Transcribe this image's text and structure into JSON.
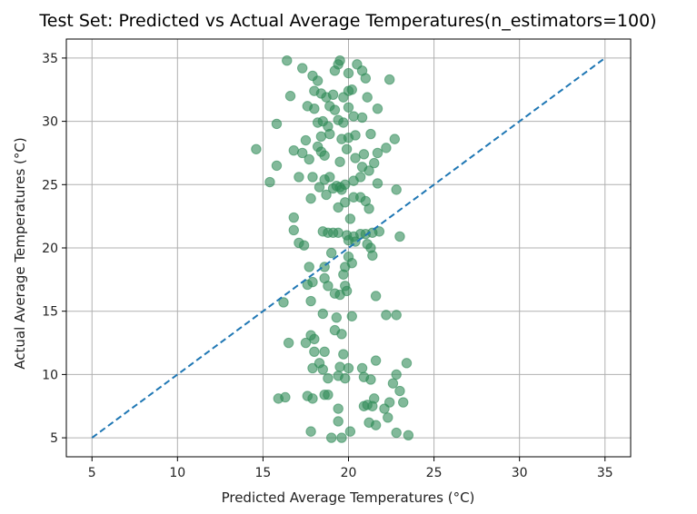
{
  "chart_data": {
    "type": "scatter",
    "title": "Test Set: Predicted vs Actual Average Temperatures(n_estimators=100)",
    "xlabel": "Predicted Average Temperatures (°C)",
    "ylabel": "Actual Average Temperatures (°C)",
    "xlim": [
      3.5,
      36.5
    ],
    "ylim": [
      3.5,
      36.5
    ],
    "xticks": [
      5,
      10,
      15,
      20,
      25,
      30,
      35
    ],
    "yticks": [
      5,
      10,
      15,
      20,
      25,
      30,
      35
    ],
    "grid": true,
    "reference_line": {
      "x": [
        5,
        35
      ],
      "y": [
        5,
        35
      ],
      "style": "dashed",
      "color": "#1f77b4"
    },
    "point_color": "#2e8b57",
    "points": [
      [
        16.4,
        34.8
      ],
      [
        17.3,
        34.2
      ],
      [
        17.9,
        33.6
      ],
      [
        18.2,
        33.2
      ],
      [
        19.2,
        34.0
      ],
      [
        19.5,
        34.8
      ],
      [
        19.4,
        34.5
      ],
      [
        20.0,
        33.8
      ],
      [
        20.5,
        34.5
      ],
      [
        20.8,
        34.0
      ],
      [
        21.0,
        33.4
      ],
      [
        22.4,
        33.3
      ],
      [
        16.6,
        32.0
      ],
      [
        18.0,
        32.4
      ],
      [
        18.4,
        32.2
      ],
      [
        18.7,
        31.9
      ],
      [
        19.1,
        32.1
      ],
      [
        19.7,
        31.9
      ],
      [
        20.0,
        32.4
      ],
      [
        20.2,
        32.5
      ],
      [
        21.1,
        31.9
      ],
      [
        17.6,
        31.2
      ],
      [
        18.0,
        31.0
      ],
      [
        18.9,
        31.2
      ],
      [
        19.2,
        30.9
      ],
      [
        20.0,
        31.1
      ],
      [
        21.7,
        31.0
      ],
      [
        15.8,
        29.8
      ],
      [
        18.2,
        29.9
      ],
      [
        18.5,
        30.0
      ],
      [
        18.8,
        29.6
      ],
      [
        19.4,
        30.1
      ],
      [
        19.7,
        29.9
      ],
      [
        20.3,
        30.4
      ],
      [
        20.8,
        30.3
      ],
      [
        17.5,
        28.5
      ],
      [
        18.4,
        28.8
      ],
      [
        18.9,
        29.0
      ],
      [
        19.6,
        28.6
      ],
      [
        20.0,
        28.7
      ],
      [
        20.4,
        28.9
      ],
      [
        21.3,
        29.0
      ],
      [
        22.7,
        28.6
      ],
      [
        14.6,
        27.8
      ],
      [
        16.8,
        27.7
      ],
      [
        17.3,
        27.5
      ],
      [
        17.7,
        27.0
      ],
      [
        18.2,
        28.0
      ],
      [
        18.4,
        27.6
      ],
      [
        18.6,
        27.3
      ],
      [
        19.5,
        26.8
      ],
      [
        19.9,
        27.8
      ],
      [
        20.4,
        27.1
      ],
      [
        20.9,
        27.4
      ],
      [
        21.7,
        27.5
      ],
      [
        22.2,
        27.9
      ],
      [
        15.8,
        26.5
      ],
      [
        20.8,
        26.4
      ],
      [
        21.2,
        26.1
      ],
      [
        21.5,
        26.7
      ],
      [
        15.4,
        25.2
      ],
      [
        17.1,
        25.6
      ],
      [
        17.9,
        25.6
      ],
      [
        18.3,
        24.8
      ],
      [
        18.6,
        25.4
      ],
      [
        18.9,
        25.6
      ],
      [
        19.1,
        24.7
      ],
      [
        19.3,
        24.9
      ],
      [
        19.5,
        24.8
      ],
      [
        19.6,
        24.6
      ],
      [
        19.8,
        25.0
      ],
      [
        20.3,
        25.3
      ],
      [
        20.7,
        25.6
      ],
      [
        21.7,
        25.1
      ],
      [
        22.8,
        24.6
      ],
      [
        17.8,
        23.9
      ],
      [
        18.7,
        24.2
      ],
      [
        19.4,
        23.2
      ],
      [
        19.8,
        23.6
      ],
      [
        20.3,
        24.0
      ],
      [
        20.7,
        24.0
      ],
      [
        21.0,
        23.7
      ],
      [
        21.2,
        23.1
      ],
      [
        20.1,
        22.3
      ],
      [
        16.8,
        22.4
      ],
      [
        16.8,
        21.4
      ],
      [
        18.5,
        21.3
      ],
      [
        18.8,
        21.2
      ],
      [
        19.1,
        21.2
      ],
      [
        19.4,
        21.2
      ],
      [
        19.9,
        21.0
      ],
      [
        20.3,
        20.9
      ],
      [
        20.7,
        21.1
      ],
      [
        21.0,
        21.1
      ],
      [
        21.4,
        21.2
      ],
      [
        21.8,
        21.3
      ],
      [
        23.0,
        20.9
      ],
      [
        17.1,
        20.4
      ],
      [
        17.4,
        20.2
      ],
      [
        20.0,
        20.6
      ],
      [
        20.4,
        20.5
      ],
      [
        21.1,
        20.3
      ],
      [
        21.3,
        20.0
      ],
      [
        21.4,
        19.4
      ],
      [
        19.0,
        19.6
      ],
      [
        20.0,
        19.3
      ],
      [
        20.2,
        18.8
      ],
      [
        18.6,
        18.5
      ],
      [
        17.7,
        18.5
      ],
      [
        19.8,
        18.5
      ],
      [
        19.7,
        17.9
      ],
      [
        18.6,
        17.6
      ],
      [
        17.9,
        17.3
      ],
      [
        17.6,
        17.1
      ],
      [
        18.8,
        17.0
      ],
      [
        19.2,
        16.4
      ],
      [
        19.5,
        16.3
      ],
      [
        19.8,
        17.0
      ],
      [
        19.9,
        16.6
      ],
      [
        21.6,
        16.2
      ],
      [
        16.2,
        15.7
      ],
      [
        17.8,
        15.8
      ],
      [
        20.2,
        14.6
      ],
      [
        18.5,
        14.8
      ],
      [
        19.3,
        14.5
      ],
      [
        22.2,
        14.7
      ],
      [
        22.8,
        14.7
      ],
      [
        17.8,
        13.1
      ],
      [
        18.0,
        12.8
      ],
      [
        19.2,
        13.5
      ],
      [
        19.6,
        13.2
      ],
      [
        16.5,
        12.5
      ],
      [
        17.5,
        12.5
      ],
      [
        18.0,
        11.8
      ],
      [
        18.6,
        11.8
      ],
      [
        19.7,
        11.6
      ],
      [
        18.3,
        10.9
      ],
      [
        21.6,
        11.1
      ],
      [
        23.4,
        10.9
      ],
      [
        17.9,
        10.5
      ],
      [
        18.5,
        10.4
      ],
      [
        19.5,
        10.6
      ],
      [
        20.0,
        10.5
      ],
      [
        20.8,
        10.5
      ],
      [
        22.8,
        10.0
      ],
      [
        18.8,
        9.7
      ],
      [
        19.4,
        9.9
      ],
      [
        19.8,
        9.7
      ],
      [
        20.9,
        9.8
      ],
      [
        21.3,
        9.6
      ],
      [
        22.6,
        9.3
      ],
      [
        23.0,
        8.7
      ],
      [
        15.9,
        8.1
      ],
      [
        16.3,
        8.2
      ],
      [
        17.6,
        8.3
      ],
      [
        17.9,
        8.1
      ],
      [
        18.6,
        8.4
      ],
      [
        18.8,
        8.4
      ],
      [
        21.5,
        8.1
      ],
      [
        20.9,
        7.5
      ],
      [
        21.1,
        7.6
      ],
      [
        21.4,
        7.5
      ],
      [
        22.1,
        7.3
      ],
      [
        22.4,
        7.8
      ],
      [
        23.2,
        7.8
      ],
      [
        19.4,
        7.3
      ],
      [
        22.3,
        6.6
      ],
      [
        19.4,
        6.3
      ],
      [
        21.2,
        6.2
      ],
      [
        21.6,
        6.0
      ],
      [
        17.8,
        5.5
      ],
      [
        19.0,
        5.0
      ],
      [
        19.6,
        5.0
      ],
      [
        20.1,
        5.5
      ],
      [
        22.8,
        5.4
      ],
      [
        23.5,
        5.2
      ]
    ]
  }
}
